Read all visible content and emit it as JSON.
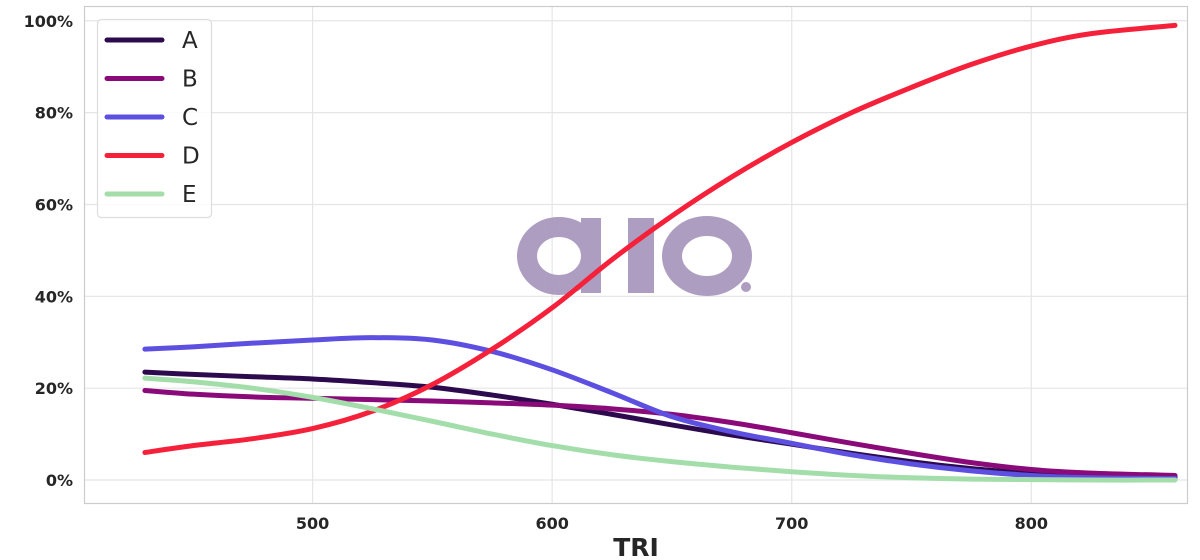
{
  "chart_data": {
    "type": "line",
    "title": "",
    "xlabel": "TRI",
    "ylabel": "",
    "xlim": [
      405,
      865
    ],
    "ylim": [
      -0.05,
      1.03
    ],
    "x_ticks": [
      500,
      600,
      700,
      800
    ],
    "x_tick_labels": [
      "500",
      "600",
      "700",
      "800"
    ],
    "y_ticks": [
      0,
      0.2,
      0.4,
      0.6,
      0.8,
      1.0
    ],
    "y_tick_labels": [
      "0%",
      "20%",
      "40%",
      "60%",
      "80%",
      "100%"
    ],
    "grid": true,
    "legend_position": "top-left",
    "x": [
      430,
      450,
      475,
      500,
      525,
      550,
      575,
      600,
      625,
      650,
      675,
      700,
      725,
      750,
      775,
      800,
      825,
      860
    ],
    "series": [
      {
        "name": "A",
        "color": "#2d0a4e",
        "values": [
          0.235,
          0.23,
          0.225,
          0.22,
          0.212,
          0.202,
          0.185,
          0.165,
          0.143,
          0.12,
          0.098,
          0.078,
          0.058,
          0.04,
          0.025,
          0.015,
          0.01,
          0.007
        ]
      },
      {
        "name": "B",
        "color": "#8b0a7a",
        "values": [
          0.195,
          0.187,
          0.181,
          0.178,
          0.175,
          0.172,
          0.168,
          0.163,
          0.155,
          0.143,
          0.125,
          0.103,
          0.08,
          0.058,
          0.038,
          0.023,
          0.015,
          0.01
        ]
      },
      {
        "name": "C",
        "color": "#5d4fe0",
        "values": [
          0.285,
          0.29,
          0.298,
          0.305,
          0.31,
          0.305,
          0.28,
          0.24,
          0.19,
          0.138,
          0.105,
          0.08,
          0.055,
          0.035,
          0.02,
          0.01,
          0.005,
          0.003
        ]
      },
      {
        "name": "D",
        "color": "#f5213a",
        "values": [
          0.06,
          0.075,
          0.09,
          0.112,
          0.15,
          0.208,
          0.285,
          0.375,
          0.48,
          0.575,
          0.66,
          0.735,
          0.8,
          0.855,
          0.905,
          0.945,
          0.972,
          0.99
        ]
      },
      {
        "name": "E",
        "color": "#a3deaa",
        "values": [
          0.222,
          0.214,
          0.2,
          0.18,
          0.155,
          0.128,
          0.1,
          0.075,
          0.055,
          0.04,
          0.028,
          0.018,
          0.01,
          0.005,
          0.002,
          0.001,
          0.0,
          0.0
        ]
      }
    ]
  },
  "watermark": {
    "text": "aio",
    "color": "#a593ba"
  }
}
